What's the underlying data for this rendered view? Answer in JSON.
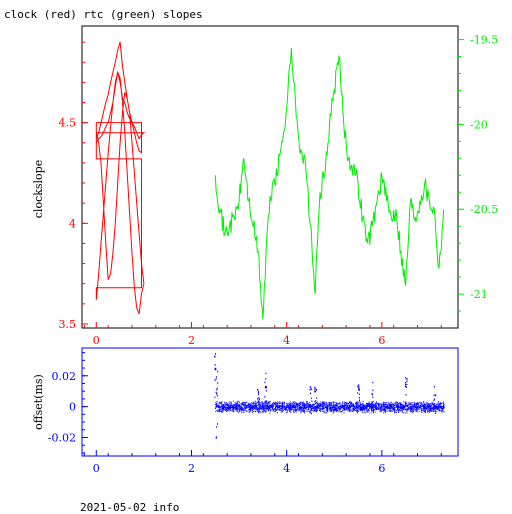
{
  "title": "clock (red) rtc (green) slopes",
  "footer": "2021-05-02 info",
  "colors": {
    "red": "#ff0000",
    "green": "#00ee00",
    "blue": "#0000ff",
    "axis": "#000000"
  },
  "chart_data": [
    {
      "type": "line",
      "title": "clock (red) rtc (green) slopes",
      "ylabel": "clockslope",
      "xlim": [
        -0.3,
        7.6
      ],
      "ylim": [
        3.48,
        4.98
      ],
      "y2lim": [
        -21.2,
        -19.42
      ],
      "x_ticks": [
        "0",
        "2",
        "4",
        "6"
      ],
      "y_ticks": [
        "3.5",
        "4",
        "4.5"
      ],
      "y2_ticks": [
        "-19.5",
        "-20",
        "-20.5",
        "-21"
      ],
      "series": [
        {
          "name": "clock",
          "color": "#ff0000",
          "axis": "left",
          "x": [
            0.0,
            0.05,
            0.1,
            0.15,
            0.2,
            0.25,
            0.3,
            0.35,
            0.4,
            0.45,
            0.5,
            0.55,
            0.6,
            0.65,
            0.7,
            0.75,
            0.8,
            0.85,
            0.9,
            0.95,
            1.0,
            0.0,
            0.0,
            0.95,
            0.95,
            0.0,
            0.0,
            0.05,
            0.1,
            0.15,
            0.2,
            0.25,
            0.3,
            0.35,
            0.4,
            0.45,
            0.5,
            0.55,
            0.6,
            0.65,
            0.7,
            0.75,
            0.8,
            0.85,
            0.9,
            0.95,
            1.0,
            0.95,
            0.9,
            0.85,
            0.8,
            0.75,
            0.7,
            0.65,
            0.6,
            0.55,
            0.5,
            0.45,
            0.4,
            0.35,
            0.3,
            0.25,
            0.2,
            0.15,
            0.1,
            0.05,
            0.0,
            0.0,
            0.95,
            0.95,
            0.9,
            0.85,
            0.8,
            0.75,
            0.7,
            0.65,
            0.6,
            0.55,
            0.5,
            0.45,
            0.4,
            0.35,
            0.3,
            0.25,
            0.2,
            0.15,
            0.1,
            0.05,
            0.0
          ],
          "values": [
            4.42,
            4.45,
            4.5,
            4.55,
            4.6,
            4.64,
            4.7,
            4.75,
            4.8,
            4.86,
            4.9,
            4.78,
            4.7,
            4.62,
            4.55,
            4.5,
            4.48,
            4.45,
            4.42,
            4.44,
            4.45,
            4.45,
            4.32,
            4.32,
            3.68,
            3.68,
            3.62,
            3.75,
            3.9,
            4.05,
            4.2,
            4.35,
            4.48,
            4.6,
            4.7,
            4.75,
            4.72,
            4.6,
            4.45,
            4.25,
            4.05,
            3.85,
            3.68,
            3.58,
            3.55,
            3.65,
            3.7,
            3.8,
            3.95,
            4.1,
            4.25,
            4.4,
            4.55,
            4.62,
            4.65,
            4.55,
            4.4,
            4.2,
            4.0,
            3.85,
            3.75,
            3.72,
            3.9,
            4.1,
            4.3,
            4.4,
            4.45,
            4.5,
            4.5,
            4.35,
            4.36,
            4.4,
            4.45,
            4.5,
            4.52,
            4.55,
            4.6,
            4.62,
            4.7,
            4.75,
            4.68,
            4.6,
            4.55,
            4.5,
            4.48,
            4.45,
            4.43,
            4.42,
            4.4
          ]
        },
        {
          "name": "rtc",
          "color": "#00ee00",
          "axis": "right",
          "x": [
            2.5,
            2.6,
            2.7,
            2.8,
            2.9,
            3.0,
            3.1,
            3.2,
            3.3,
            3.4,
            3.5,
            3.6,
            3.7,
            3.8,
            3.9,
            4.0,
            4.1,
            4.2,
            4.3,
            4.4,
            4.5,
            4.6,
            4.7,
            4.8,
            4.9,
            5.0,
            5.1,
            5.2,
            5.3,
            5.4,
            5.5,
            5.6,
            5.7,
            5.8,
            5.9,
            6.0,
            6.1,
            6.2,
            6.3,
            6.4,
            6.5,
            6.6,
            6.7,
            6.8,
            6.9,
            7.0,
            7.1,
            7.2,
            7.3
          ],
          "values": [
            -20.3,
            -20.5,
            -20.65,
            -20.6,
            -20.55,
            -20.45,
            -20.2,
            -20.45,
            -20.6,
            -20.75,
            -21.15,
            -20.6,
            -20.35,
            -20.3,
            -20.1,
            -19.9,
            -19.55,
            -19.95,
            -20.15,
            -20.25,
            -20.6,
            -21.0,
            -20.4,
            -20.3,
            -20.0,
            -19.8,
            -19.6,
            -20.0,
            -20.2,
            -20.25,
            -20.35,
            -20.55,
            -20.7,
            -20.6,
            -20.45,
            -20.3,
            -20.45,
            -20.55,
            -20.5,
            -20.75,
            -20.95,
            -20.45,
            -20.55,
            -20.45,
            -20.35,
            -20.45,
            -20.5,
            -20.85,
            -20.5
          ]
        }
      ]
    },
    {
      "type": "scatter",
      "ylabel": "offset(ms)",
      "xlim": [
        -0.3,
        7.6
      ],
      "ylim": [
        -0.032,
        0.038
      ],
      "x_ticks": [
        "0",
        "2",
        "4",
        "6"
      ],
      "y_ticks": [
        "0.02",
        "0",
        "-0.02"
      ],
      "series": [
        {
          "name": "offset",
          "color": "#0000ff",
          "x_range": [
            2.5,
            7.3
          ],
          "center": 0.0,
          "band_half_width": 0.004,
          "spikes": [
            {
              "x": 2.5,
              "low": -0.022,
              "high": 0.035
            },
            {
              "x": 2.52,
              "low": -0.012,
              "high": 0.026
            },
            {
              "x": 3.55,
              "low": -0.006,
              "high": 0.024
            },
            {
              "x": 3.4,
              "low": -0.004,
              "high": 0.012
            },
            {
              "x": 4.5,
              "low": -0.004,
              "high": 0.014
            },
            {
              "x": 4.6,
              "low": -0.003,
              "high": 0.013
            },
            {
              "x": 5.5,
              "low": -0.004,
              "high": 0.016
            },
            {
              "x": 5.8,
              "low": -0.004,
              "high": 0.018
            },
            {
              "x": 6.5,
              "low": -0.004,
              "high": 0.02
            },
            {
              "x": 7.1,
              "low": -0.004,
              "high": 0.014
            }
          ]
        }
      ]
    }
  ]
}
